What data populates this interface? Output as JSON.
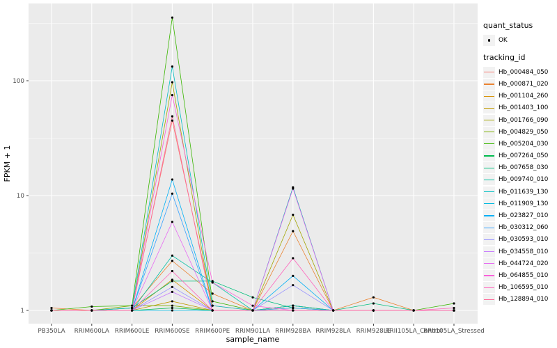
{
  "colors": {
    "figure_background": "#FFFFFF",
    "panel_background": "#EBEBEB",
    "gridline": "#FFFFFF",
    "tick_mark": "#333333",
    "tick_label": "#4D4D4D",
    "axis_title": "#000000",
    "point": "#000000",
    "legend_key_background": "#F2F2F2"
  },
  "legend": {
    "quant_status": {
      "title": "quant_status",
      "items": [
        {
          "label": "OK",
          "marker": "point-icon",
          "color": "#000000"
        }
      ]
    },
    "tracking": {
      "title": "tracking_id"
    }
  },
  "chart_data": {
    "type": "line",
    "title": "",
    "xlabel": "sample_name",
    "ylabel": "FPKM + 1",
    "y_scale": "log10",
    "y_ticks": [
      1,
      10,
      100
    ],
    "y_minor_ticks": [
      3.162,
      31.62,
      316.2
    ],
    "ylim": [
      1,
      470
    ],
    "grid": true,
    "legend_position": "right",
    "point_shape": "filled-circle",
    "point_color": "#000000",
    "quant_status": "OK",
    "categories": [
      "PB350LA",
      "RRIM600LA",
      "RRIM600LE",
      "RRIM600SE",
      "RRIM600PE",
      "RRIM901LA",
      "RRIM928BA",
      "RRIM928LA",
      "RRIM928LE",
      "RRII105LA_Control",
      "RRII105LA_Stressed"
    ],
    "series": [
      {
        "name": "Hb_000484_050",
        "color": "#F8766D",
        "values": [
          1.0,
          1.0,
          1.05,
          45,
          1.1,
          1.0,
          1.1,
          1.0,
          1.0,
          1.0,
          1.0
        ]
      },
      {
        "name": "Hb_000871_020",
        "color": "#EA8331",
        "values": [
          1.05,
          1.0,
          1.05,
          2.7,
          1.4,
          1.0,
          4.9,
          1.0,
          1.3,
          1.0,
          1.0
        ]
      },
      {
        "name": "Hb_001104_260",
        "color": "#D89000",
        "values": [
          1.0,
          1.0,
          1.0,
          1.85,
          1.0,
          1.0,
          1.1,
          1.0,
          1.0,
          1.0,
          1.0
        ]
      },
      {
        "name": "Hb_001403_100",
        "color": "#C09B00",
        "values": [
          1.0,
          1.0,
          1.0,
          1.2,
          1.0,
          1.0,
          1.05,
          1.0,
          1.0,
          1.0,
          1.0
        ]
      },
      {
        "name": "Hb_001766_090",
        "color": "#A3A500",
        "values": [
          1.0,
          1.0,
          1.0,
          97,
          1.0,
          1.0,
          6.8,
          1.0,
          1.0,
          1.0,
          1.0
        ]
      },
      {
        "name": "Hb_004829_050",
        "color": "#7CAE00",
        "values": [
          1.0,
          1.0,
          1.1,
          1.1,
          1.0,
          1.0,
          1.0,
          1.0,
          1.0,
          1.0,
          1.0
        ]
      },
      {
        "name": "Hb_005204_030",
        "color": "#39B600",
        "values": [
          1.0,
          1.08,
          1.1,
          355,
          1.2,
          1.0,
          1.1,
          1.0,
          1.0,
          1.0,
          1.15
        ]
      },
      {
        "name": "Hb_007264_050",
        "color": "#00BB4E",
        "values": [
          1.0,
          1.0,
          1.0,
          1.05,
          1.0,
          1.0,
          1.0,
          1.0,
          1.0,
          1.0,
          1.0
        ]
      },
      {
        "name": "Hb_007658_030",
        "color": "#00BF7D",
        "values": [
          1.0,
          1.0,
          1.05,
          1.8,
          1.8,
          1.3,
          1.05,
          1.0,
          1.15,
          1.0,
          1.0
        ]
      },
      {
        "name": "Hb_009740_010",
        "color": "#00C1A3",
        "values": [
          1.0,
          1.0,
          1.0,
          3.0,
          1.75,
          1.0,
          11.8,
          1.0,
          1.0,
          1.0,
          1.0
        ]
      },
      {
        "name": "Hb_011639_130",
        "color": "#00BFC4",
        "values": [
          1.0,
          1.0,
          1.05,
          133,
          1.1,
          1.0,
          1.1,
          1.0,
          1.0,
          1.0,
          1.0
        ]
      },
      {
        "name": "Hb_011909_130",
        "color": "#00BAE0",
        "values": [
          1.0,
          1.0,
          1.0,
          1.0,
          1.0,
          1.0,
          1.0,
          1.0,
          1.0,
          1.0,
          1.0
        ]
      },
      {
        "name": "Hb_023827_010",
        "color": "#00B0F6",
        "values": [
          1.0,
          1.0,
          1.0,
          13.8,
          1.0,
          1.0,
          2.0,
          1.0,
          1.0,
          1.0,
          1.0
        ]
      },
      {
        "name": "Hb_030312_060",
        "color": "#35A2FF",
        "values": [
          1.0,
          1.0,
          1.0,
          10.4,
          1.0,
          1.0,
          1.05,
          1.0,
          1.0,
          1.0,
          1.0
        ]
      },
      {
        "name": "Hb_030593_010",
        "color": "#9590FF",
        "values": [
          1.0,
          1.0,
          1.0,
          1.6,
          1.0,
          1.0,
          1.66,
          1.0,
          1.0,
          1.0,
          1.0
        ]
      },
      {
        "name": "Hb_034558_010",
        "color": "#C77CFF",
        "values": [
          1.0,
          1.0,
          1.0,
          1.45,
          1.0,
          1.0,
          1.0,
          1.0,
          1.0,
          1.0,
          1.0
        ]
      },
      {
        "name": "Hb_044724_020",
        "color": "#E76BF3",
        "values": [
          1.0,
          1.0,
          1.0,
          5.9,
          1.0,
          1.0,
          11.5,
          1.0,
          1.0,
          1.0,
          1.0
        ]
      },
      {
        "name": "Hb_064855_010",
        "color": "#FA62DB",
        "values": [
          1.0,
          1.0,
          1.0,
          75,
          1.75,
          1.1,
          1.0,
          1.0,
          1.0,
          1.0,
          1.0
        ]
      },
      {
        "name": "Hb_106595_010",
        "color": "#FF62BC",
        "values": [
          1.0,
          1.0,
          1.0,
          2.2,
          1.0,
          1.0,
          2.85,
          1.0,
          1.0,
          1.0,
          1.05
        ]
      },
      {
        "name": "Hb_128894_010",
        "color": "#FF6A98",
        "values": [
          1.0,
          1.0,
          1.0,
          49,
          1.0,
          1.0,
          1.0,
          1.0,
          1.0,
          1.0,
          1.0
        ]
      }
    ]
  }
}
